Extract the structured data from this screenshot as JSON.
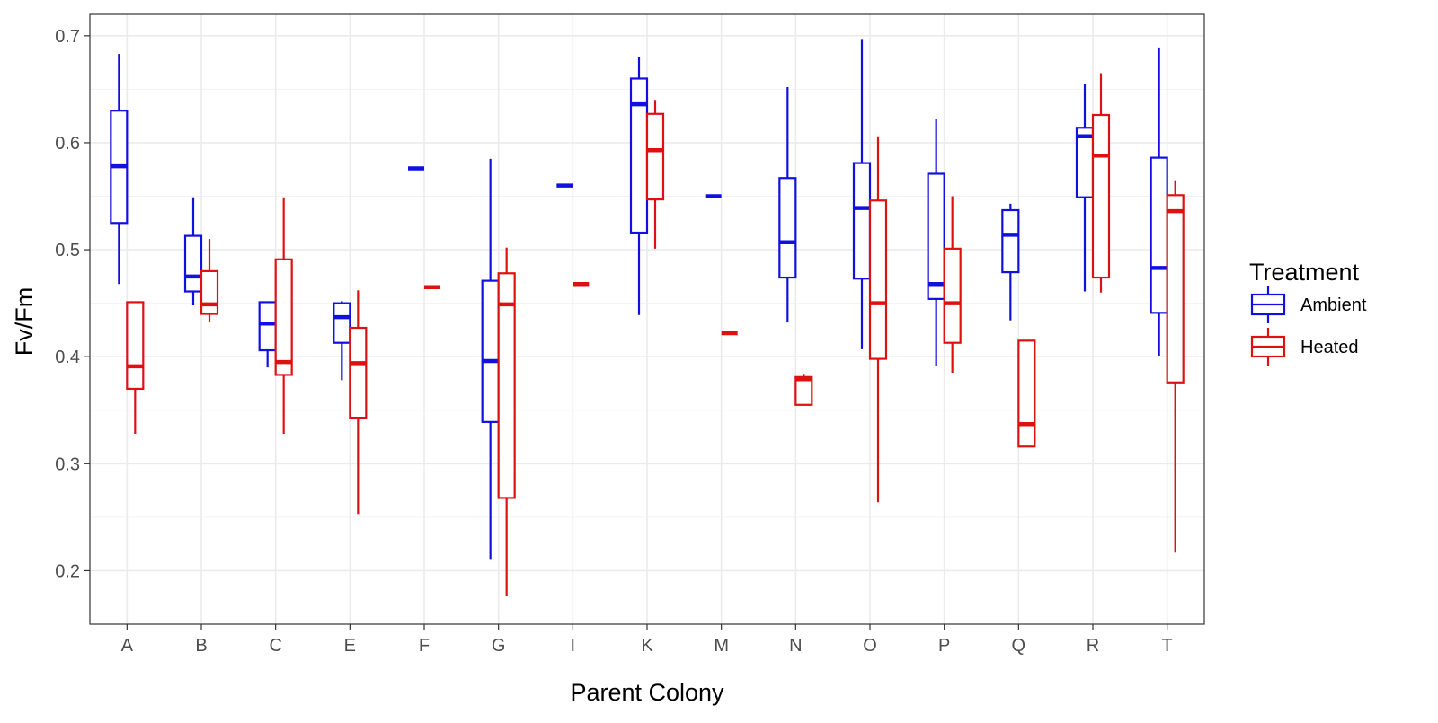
{
  "chart_data": {
    "type": "boxplot",
    "title": "",
    "xlabel": "Parent Colony",
    "ylabel": "Fv/Fm",
    "ylim": [
      0.15,
      0.72
    ],
    "yticks": [
      0.2,
      0.3,
      0.4,
      0.5,
      0.6,
      0.7
    ],
    "ytick_labels": [
      "0.2",
      "0.3",
      "0.4",
      "0.5",
      "0.6",
      "0.7"
    ],
    "categories": [
      "A",
      "B",
      "C",
      "E",
      "F",
      "G",
      "I",
      "K",
      "M",
      "N",
      "O",
      "P",
      "Q",
      "R",
      "T"
    ],
    "legend": {
      "title": "Treatment",
      "position": "right",
      "entries": [
        "Ambient",
        "Heated"
      ]
    },
    "series": [
      {
        "name": "Ambient",
        "color": "#1010e0",
        "boxes": [
          {
            "category": "A",
            "min": 0.468,
            "q1": 0.525,
            "median": 0.578,
            "q3": 0.63,
            "max": 0.683
          },
          {
            "category": "B",
            "min": 0.448,
            "q1": 0.461,
            "median": 0.475,
            "q3": 0.513,
            "max": 0.549
          },
          {
            "category": "C",
            "min": 0.39,
            "q1": 0.406,
            "median": 0.431,
            "q3": 0.451,
            "max": 0.451
          },
          {
            "category": "E",
            "min": 0.378,
            "q1": 0.413,
            "median": 0.437,
            "q3": 0.45,
            "max": 0.452
          },
          {
            "category": "F",
            "min": 0.576,
            "q1": 0.576,
            "median": 0.576,
            "q3": 0.576,
            "max": 0.576
          },
          {
            "category": "G",
            "min": 0.211,
            "q1": 0.339,
            "median": 0.396,
            "q3": 0.471,
            "max": 0.585
          },
          {
            "category": "I",
            "min": 0.56,
            "q1": 0.56,
            "median": 0.56,
            "q3": 0.56,
            "max": 0.56
          },
          {
            "category": "K",
            "min": 0.439,
            "q1": 0.516,
            "median": 0.636,
            "q3": 0.66,
            "max": 0.68
          },
          {
            "category": "M",
            "min": 0.55,
            "q1": 0.55,
            "median": 0.55,
            "q3": 0.55,
            "max": 0.55
          },
          {
            "category": "N",
            "min": 0.432,
            "q1": 0.474,
            "median": 0.507,
            "q3": 0.567,
            "max": 0.652
          },
          {
            "category": "O",
            "min": 0.407,
            "q1": 0.473,
            "median": 0.539,
            "q3": 0.581,
            "max": 0.697
          },
          {
            "category": "P",
            "min": 0.391,
            "q1": 0.454,
            "median": 0.468,
            "q3": 0.571,
            "max": 0.622
          },
          {
            "category": "Q",
            "min": 0.434,
            "q1": 0.479,
            "median": 0.514,
            "q3": 0.537,
            "max": 0.543
          },
          {
            "category": "R",
            "min": 0.461,
            "q1": 0.549,
            "median": 0.606,
            "q3": 0.614,
            "max": 0.655
          },
          {
            "category": "T",
            "min": 0.401,
            "q1": 0.441,
            "median": 0.483,
            "q3": 0.586,
            "max": 0.689
          }
        ]
      },
      {
        "name": "Heated",
        "color": "#dd1111",
        "boxes": [
          {
            "category": "A",
            "min": 0.328,
            "q1": 0.37,
            "median": 0.391,
            "q3": 0.451,
            "max": 0.451
          },
          {
            "category": "B",
            "min": 0.432,
            "q1": 0.44,
            "median": 0.449,
            "q3": 0.48,
            "max": 0.51
          },
          {
            "category": "C",
            "min": 0.328,
            "q1": 0.383,
            "median": 0.395,
            "q3": 0.491,
            "max": 0.549
          },
          {
            "category": "E",
            "min": 0.253,
            "q1": 0.343,
            "median": 0.394,
            "q3": 0.427,
            "max": 0.462
          },
          {
            "category": "F",
            "min": 0.465,
            "q1": 0.465,
            "median": 0.465,
            "q3": 0.465,
            "max": 0.465
          },
          {
            "category": "G",
            "min": 0.176,
            "q1": 0.268,
            "median": 0.449,
            "q3": 0.478,
            "max": 0.502
          },
          {
            "category": "I",
            "min": 0.468,
            "q1": 0.468,
            "median": 0.468,
            "q3": 0.468,
            "max": 0.468
          },
          {
            "category": "K",
            "min": 0.501,
            "q1": 0.547,
            "median": 0.593,
            "q3": 0.627,
            "max": 0.64
          },
          {
            "category": "M",
            "min": 0.422,
            "q1": 0.422,
            "median": 0.422,
            "q3": 0.422,
            "max": 0.422
          },
          {
            "category": "N",
            "min": 0.355,
            "q1": 0.355,
            "median": 0.379,
            "q3": 0.381,
            "max": 0.384
          },
          {
            "category": "O",
            "min": 0.264,
            "q1": 0.398,
            "median": 0.45,
            "q3": 0.546,
            "max": 0.606
          },
          {
            "category": "P",
            "min": 0.385,
            "q1": 0.413,
            "median": 0.45,
            "q3": 0.501,
            "max": 0.55
          },
          {
            "category": "Q",
            "min": 0.316,
            "q1": 0.316,
            "median": 0.337,
            "q3": 0.415,
            "max": 0.415
          },
          {
            "category": "R",
            "min": 0.46,
            "q1": 0.474,
            "median": 0.588,
            "q3": 0.626,
            "max": 0.665
          },
          {
            "category": "T",
            "min": 0.217,
            "q1": 0.376,
            "median": 0.536,
            "q3": 0.551,
            "max": 0.565
          }
        ]
      }
    ]
  }
}
